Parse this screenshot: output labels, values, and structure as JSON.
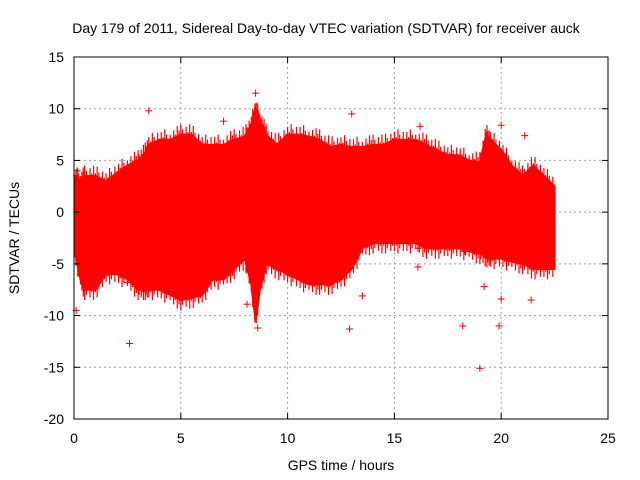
{
  "chart_data": {
    "type": "scatter",
    "title": "Day 179 of 2011, Sidereal Day-to-day VTEC variation (SDTVAR) for receiver auck",
    "xlabel": "GPS time / hours",
    "ylabel": "SDTVAR / TECUs",
    "xlim": [
      0,
      25
    ],
    "ylim": [
      -20,
      15
    ],
    "xticks": [
      0,
      5,
      10,
      15,
      20,
      25
    ],
    "yticks": [
      -20,
      -15,
      -10,
      -5,
      0,
      5,
      10,
      15
    ],
    "grid": true,
    "series_color": "#ff0000",
    "envelope": {
      "description": "dense band of points; upper and lower bounds per time",
      "x": [
        0.05,
        0.3,
        0.5,
        1.0,
        1.5,
        2.0,
        2.5,
        3.0,
        3.3,
        3.5,
        4.0,
        4.5,
        5.0,
        5.5,
        6.0,
        6.5,
        7.0,
        7.5,
        8.0,
        8.3,
        8.5,
        8.7,
        9.0,
        9.5,
        10.0,
        10.5,
        11.0,
        11.5,
        12.0,
        12.5,
        13.0,
        13.5,
        14.0,
        14.5,
        15.0,
        15.5,
        16.0,
        16.5,
        17.0,
        17.5,
        18.0,
        18.5,
        19.0,
        19.3,
        19.5,
        20.0,
        20.5,
        21.0,
        21.5,
        22.0,
        22.5
      ],
      "upper": [
        3.5,
        3.0,
        3.5,
        3.5,
        3.0,
        3.8,
        4.5,
        5.0,
        5.6,
        6.5,
        7.0,
        7.0,
        7.5,
        7.5,
        6.5,
        6.5,
        6.5,
        7.0,
        7.3,
        8.5,
        10.0,
        9.0,
        7.5,
        6.5,
        7.5,
        7.5,
        7.3,
        7.0,
        6.3,
        6.5,
        6.3,
        6.3,
        6.5,
        6.5,
        7.0,
        7.0,
        7.0,
        6.5,
        6.0,
        5.5,
        5.5,
        5.0,
        4.8,
        7.5,
        7.0,
        6.0,
        4.5,
        3.5,
        4.5,
        3.5,
        2.5
      ],
      "lower": [
        -4.0,
        -6.5,
        -7.5,
        -7.5,
        -6.0,
        -6.0,
        -6.5,
        -7.5,
        -7.5,
        -7.5,
        -7.5,
        -8.0,
        -8.5,
        -8.3,
        -8.0,
        -6.5,
        -6.5,
        -5.5,
        -4.5,
        -7.0,
        -10.5,
        -7.5,
        -5.0,
        -5.5,
        -6.0,
        -6.5,
        -7.0,
        -7.0,
        -7.0,
        -6.5,
        -5.5,
        -3.5,
        -3.0,
        -3.0,
        -3.0,
        -3.0,
        -3.0,
        -3.5,
        -3.5,
        -3.5,
        -3.5,
        -3.8,
        -4.0,
        -4.3,
        -4.5,
        -4.5,
        -4.8,
        -5.0,
        -5.5,
        -5.5,
        -5.5
      ]
    },
    "outliers": {
      "x": [
        0.1,
        0.15,
        2.4,
        2.5,
        2.6,
        3.5,
        7.0,
        7.3,
        8.1,
        8.5,
        8.6,
        12.9,
        13.0,
        13.5,
        16.1,
        16.1,
        16.2,
        18.2,
        18.3,
        19.0,
        19.2,
        19.9,
        20.0,
        20.0,
        20.1,
        21.1,
        21.4,
        22.1
      ],
      "y": [
        -9.5,
        4.0,
        -5.8,
        -6.8,
        -12.7,
        9.8,
        8.8,
        -5.8,
        -8.9,
        11.5,
        -11.2,
        -11.3,
        9.5,
        -8.1,
        -3.5,
        -5.3,
        8.3,
        -11.0,
        -3.8,
        -15.1,
        -7.2,
        -11.0,
        -8.4,
        8.4,
        5.6,
        7.4,
        -8.5,
        2.7
      ]
    }
  }
}
